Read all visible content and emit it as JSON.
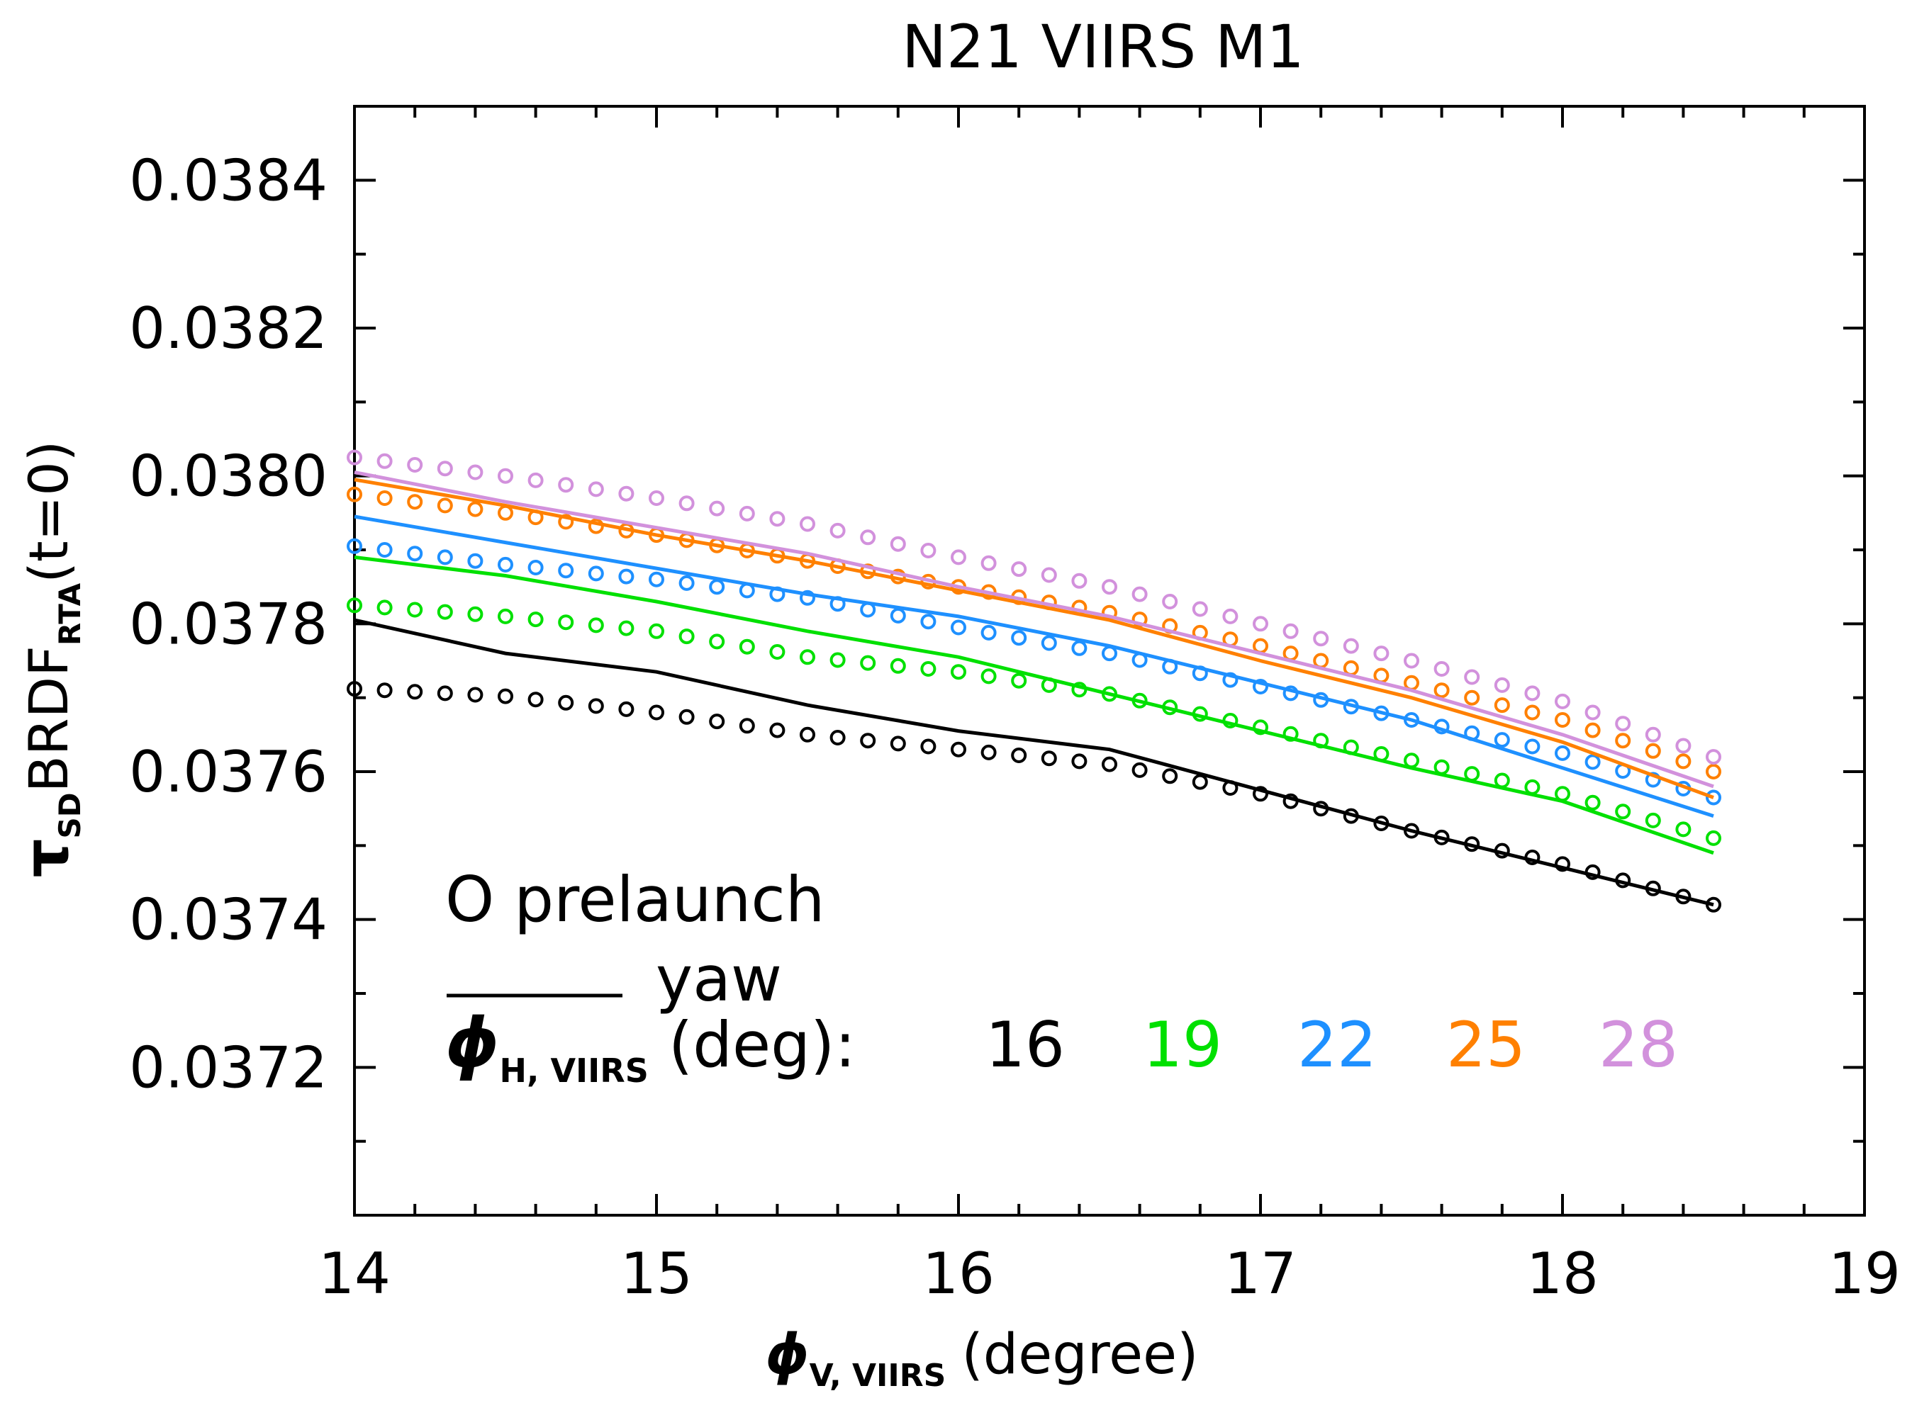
{
  "chart_data": {
    "type": "scatter",
    "title": "N21 VIIRS M1",
    "xlabel": {
      "symbol": "ϕ",
      "sub": "V, VIIRS",
      "rest": "(degree)"
    },
    "ylabel": {
      "main": "τ",
      "sub1": "SD",
      "mid": "BRDF",
      "sub2": "RTA",
      "rest": "(t=0)"
    },
    "xlim": [
      14,
      19
    ],
    "ylim": [
      0.037,
      0.0385
    ],
    "xticks": [
      14,
      15,
      16,
      17,
      18,
      19
    ],
    "xtick_labels": [
      "14",
      "15",
      "16",
      "17",
      "18",
      "19"
    ],
    "yticks": [
      0.0372,
      0.0374,
      0.0376,
      0.0378,
      0.038,
      0.0382,
      0.0384
    ],
    "ytick_labels": [
      "0.0372",
      "0.0374",
      "0.0376",
      "0.0378",
      "0.0380",
      "0.0382",
      "0.0384"
    ],
    "x": [
      14.0,
      14.5,
      15.0,
      15.5,
      16.0,
      16.5,
      17.0,
      17.5,
      18.0,
      18.5
    ],
    "marker_step": 0.1,
    "legend": {
      "marker_label": "O prelaunch",
      "line_label": "yaw",
      "phi_symbol": "ϕ",
      "phi_sub": "H, VIIRS",
      "phi_rest": "(deg):"
    },
    "series": [
      {
        "name": "16",
        "color": "#000000",
        "prelaunch": [
          0.037712,
          0.037702,
          0.03768,
          0.03765,
          0.03763,
          0.03761,
          0.03757,
          0.03752,
          0.037475,
          0.03742
        ],
        "yaw": [
          0.037805,
          0.03776,
          0.037735,
          0.03769,
          0.037655,
          0.03763,
          0.037575,
          0.03752,
          0.03747,
          0.03742
        ]
      },
      {
        "name": "19",
        "color": "#00e000",
        "prelaunch": [
          0.037825,
          0.03781,
          0.03779,
          0.037755,
          0.037735,
          0.037705,
          0.03766,
          0.037615,
          0.03757,
          0.03751
        ],
        "yaw": [
          0.03789,
          0.037865,
          0.03783,
          0.03779,
          0.037755,
          0.037705,
          0.037655,
          0.037605,
          0.03756,
          0.03749
        ]
      },
      {
        "name": "22",
        "color": "#1e90ff",
        "prelaunch": [
          0.037905,
          0.03788,
          0.03786,
          0.037835,
          0.037795,
          0.03776,
          0.037715,
          0.03767,
          0.037625,
          0.037565
        ],
        "yaw": [
          0.037945,
          0.03791,
          0.037875,
          0.03784,
          0.03781,
          0.03777,
          0.03772,
          0.03767,
          0.037605,
          0.03754
        ]
      },
      {
        "name": "25",
        "color": "#ff8000",
        "prelaunch": [
          0.037975,
          0.03795,
          0.03792,
          0.037885,
          0.03785,
          0.037815,
          0.03777,
          0.03772,
          0.03767,
          0.0376
        ],
        "yaw": [
          0.037995,
          0.03796,
          0.03792,
          0.037885,
          0.037845,
          0.037805,
          0.03775,
          0.0377,
          0.03764,
          0.037565
        ]
      },
      {
        "name": "28",
        "color": "#d291dc",
        "prelaunch": [
          0.038025,
          0.038,
          0.03797,
          0.037935,
          0.03789,
          0.03785,
          0.0378,
          0.03775,
          0.037695,
          0.03762
        ],
        "yaw": [
          0.038005,
          0.037965,
          0.03793,
          0.037895,
          0.03785,
          0.03781,
          0.03776,
          0.03771,
          0.03765,
          0.03758
        ]
      }
    ]
  }
}
